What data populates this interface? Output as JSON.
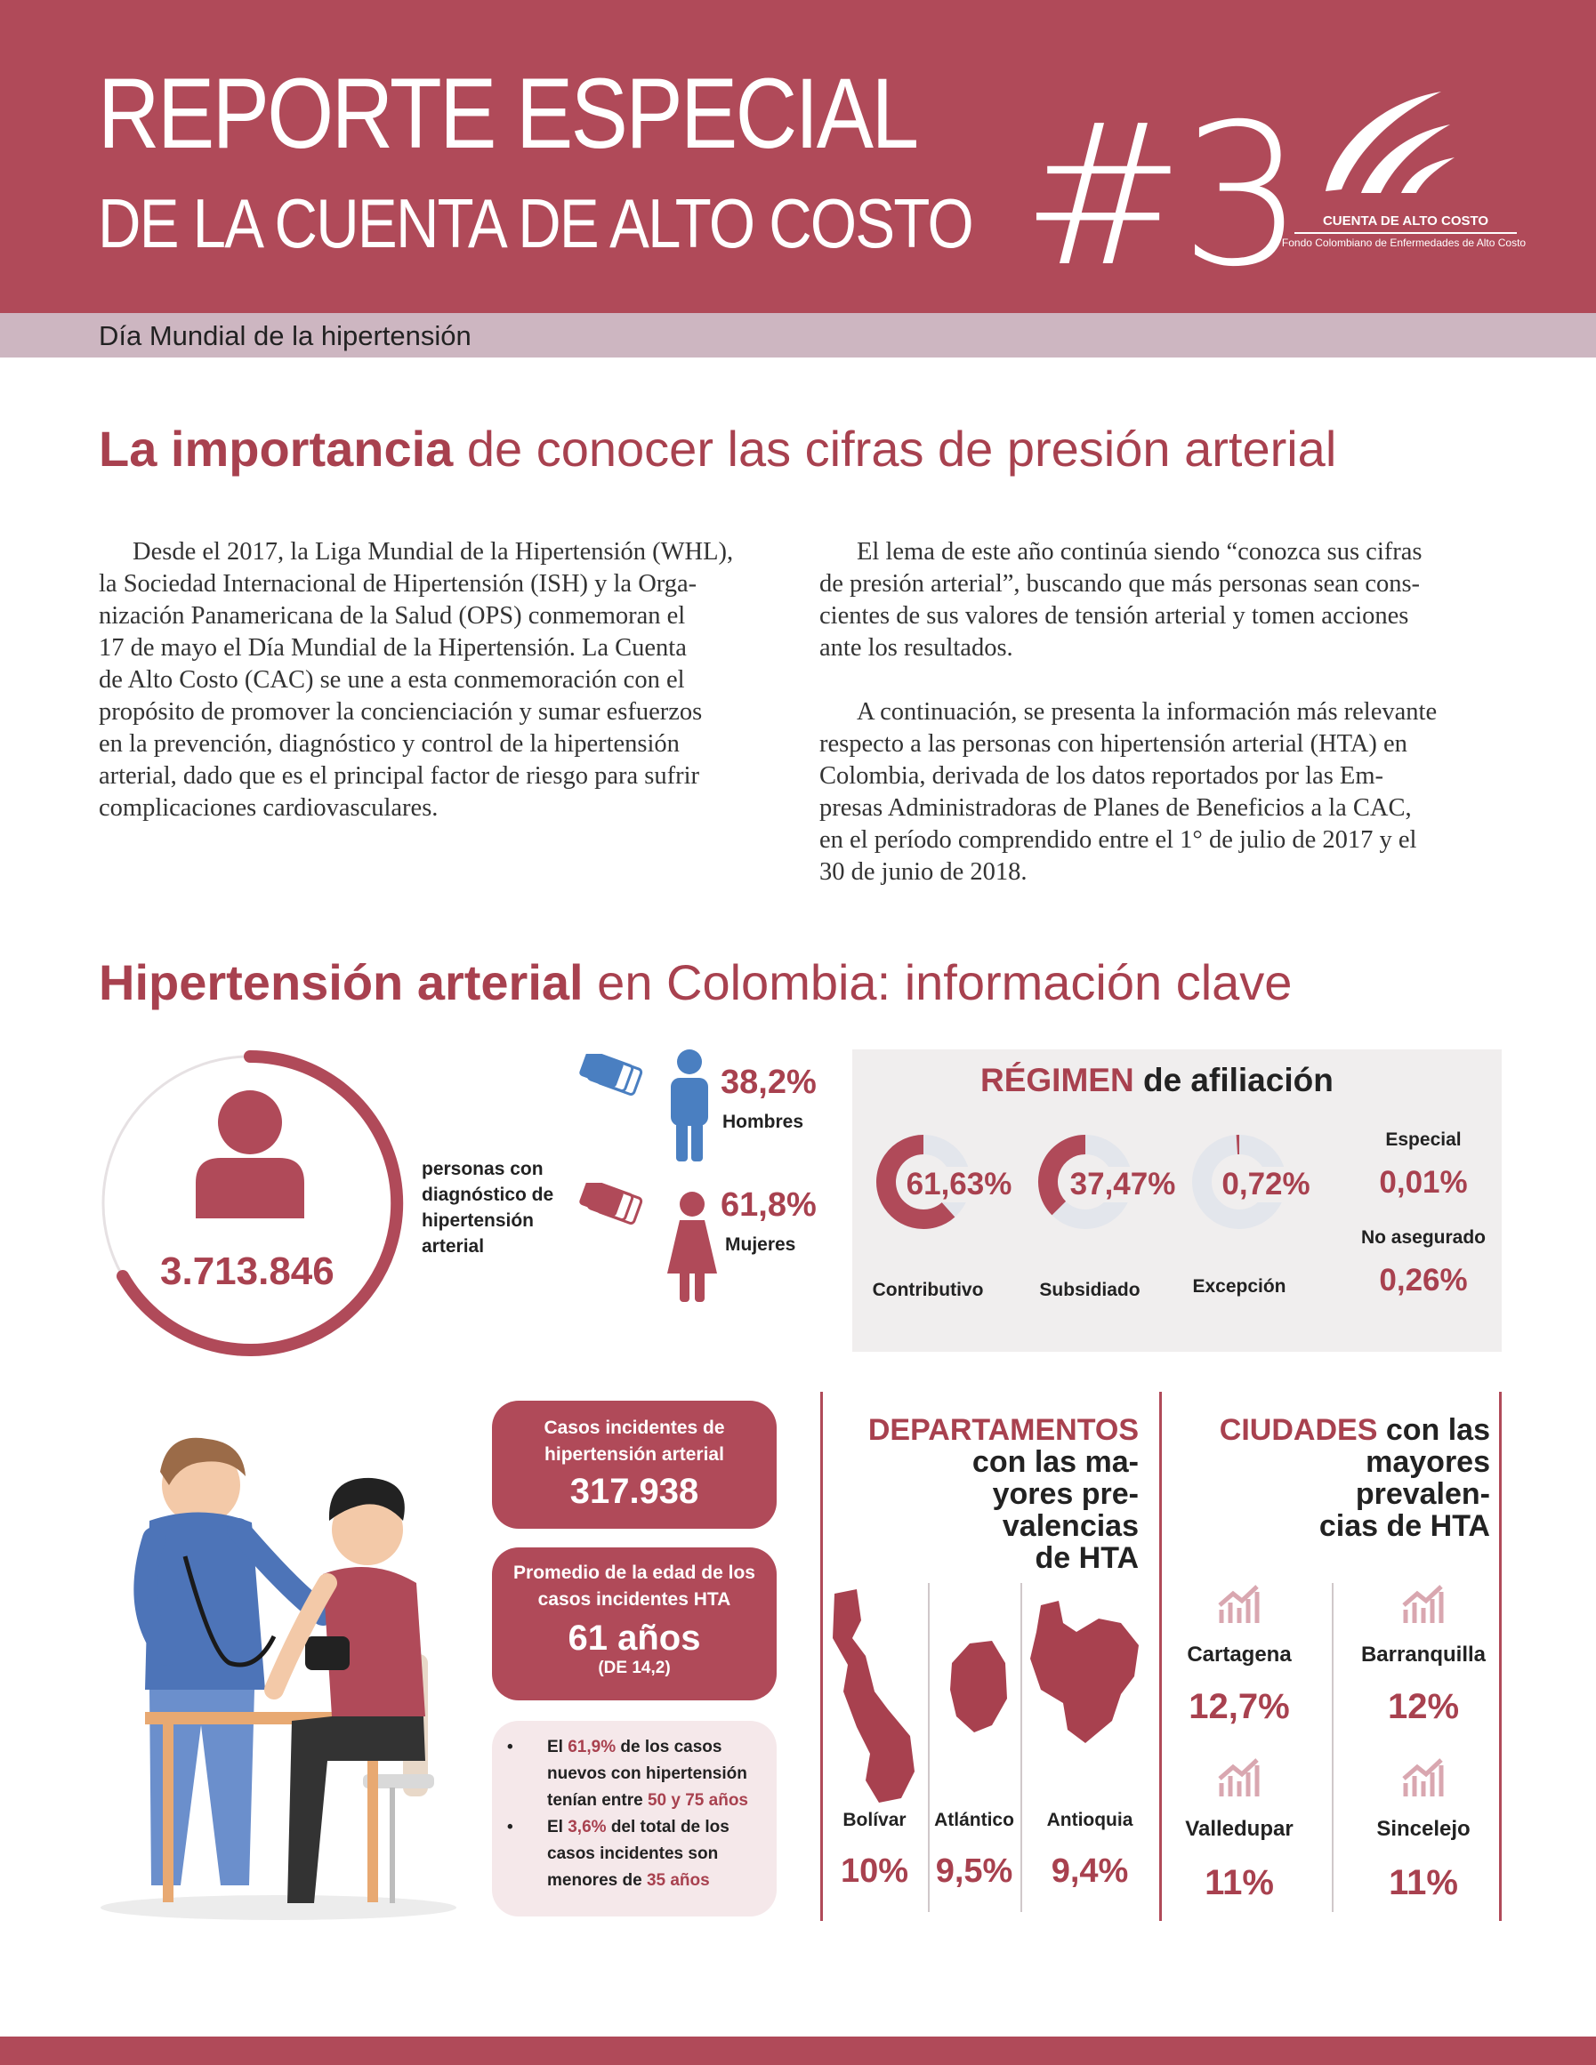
{
  "header": {
    "title_line1": "REPORTE ESPECIAL",
    "title_line2": "DE LA CUENTA DE ALTO COSTO",
    "issue": "#3",
    "logo_name": "CUENTA DE ALTO COSTO",
    "logo_subtitle": "Fondo Colombiano de Enfermedades de Alto Costo",
    "subtitle": "Día Mundial de la hipertensión",
    "colors": {
      "primary": "#b04a59",
      "subbar": "#cdb6c1",
      "accent_text": "#a8414f"
    }
  },
  "section1": {
    "heading_bold": "La importancia",
    "heading_rest": "de conocer las cifras de presión arterial",
    "col1": [
      "Desde el 2017, la Liga Mundial de la Hipertensión (WHL),",
      "la Sociedad Internacional de Hipertensión (ISH) y la Orga-",
      "nización Panamericana de la Salud (OPS) conmemoran el",
      "17 de mayo el Día Mundial de la Hipertensión. La Cuenta",
      "de Alto Costo (CAC) se une a esta conmemoración con el",
      "propósito de promover la concienciación y sumar esfuerzos",
      "en la prevención, diagnóstico y control de la hipertensión",
      "arterial, dado que es el principal factor de riesgo para sufrir",
      "complicaciones cardiovasculares."
    ],
    "col2a": [
      "El lema de este año continúa siendo “conozca sus cifras",
      "de presión arterial”, buscando que más personas sean cons-",
      "cientes de sus valores de tensión arterial y tomen acciones",
      "ante los resultados."
    ],
    "col2b": [
      "A continuación, se presenta la información más relevante",
      "respecto a las personas con hipertensión arterial (HTA) en",
      "Colombia, derivada de los datos reportados por las Em-",
      "presas Administradoras de Planes de Beneficios a la CAC,",
      "en el período comprendido entre el 1° de julio de 2017 y el",
      "30 de junio de 2018."
    ]
  },
  "section2": {
    "heading_bold": "Hipertensión arterial",
    "heading_rest": "en Colombia: información clave",
    "total_people": "3.713.846",
    "total_label": [
      "personas con",
      "diagnóstico de",
      "hipertensión",
      "arterial"
    ],
    "men_pct": "38,2%",
    "men_label": "Hombres",
    "women_pct": "61,8%",
    "women_label": "Mujeres",
    "affiliation": {
      "title_bold": "RÉGIMEN",
      "title_rest": "de afiliación",
      "donuts": [
        {
          "value": "61,63%",
          "fraction": 0.6163,
          "label": "Contributivo"
        },
        {
          "value": "37,47%",
          "fraction": 0.3747,
          "label": "Subsidiado"
        },
        {
          "value": "0,72%",
          "fraction": 0.0072,
          "label": "Excepción"
        }
      ],
      "others": [
        {
          "label": "Especial",
          "value": "0,01%"
        },
        {
          "label": "No asegurado",
          "value": "0,26%"
        }
      ]
    },
    "incident_cases": {
      "label_line1": "Casos incidentes de",
      "label_line2": "hipertensión arterial",
      "value": "317.938"
    },
    "mean_age": {
      "label_line1": "Promedio de la edad de los",
      "label_line2": "casos incidentes HTA",
      "value": "61 años",
      "sd": "(DE 14,2)"
    },
    "bullets": {
      "b1_a": "El",
      "b1_pct": "61,9%",
      "b1_b": "de los casos",
      "b1_c": "nuevos con hipertensión",
      "b1_d": "tenían entre",
      "b1_range": "50 y 75 años",
      "b2_a": "El",
      "b2_pct": "3,6%",
      "b2_b": "del total de los",
      "b2_c": "casos incidentes son",
      "b2_d": "menores de",
      "b2_age": "35 años"
    },
    "departments": {
      "title_red": "DEPARTAMENTOS",
      "title_lines": [
        "con las ma-",
        "yores pre-",
        "valencias",
        "de HTA"
      ],
      "items": [
        {
          "name": "Bolívar",
          "value": "10%"
        },
        {
          "name": "Atlántico",
          "value": "9,5%"
        },
        {
          "name": "Antioquia",
          "value": "9,4%"
        }
      ]
    },
    "cities": {
      "title_red": "CIUDADES",
      "title_rest": "con las",
      "title_lines": [
        "mayores",
        "prevalen-",
        "cias de HTA"
      ],
      "items": [
        {
          "name": "Cartagena",
          "value": "12,7%"
        },
        {
          "name": "Barranquilla",
          "value": "12%"
        },
        {
          "name": "Valledupar",
          "value": "11%"
        },
        {
          "name": "Sincelejo",
          "value": "11%"
        }
      ]
    }
  }
}
